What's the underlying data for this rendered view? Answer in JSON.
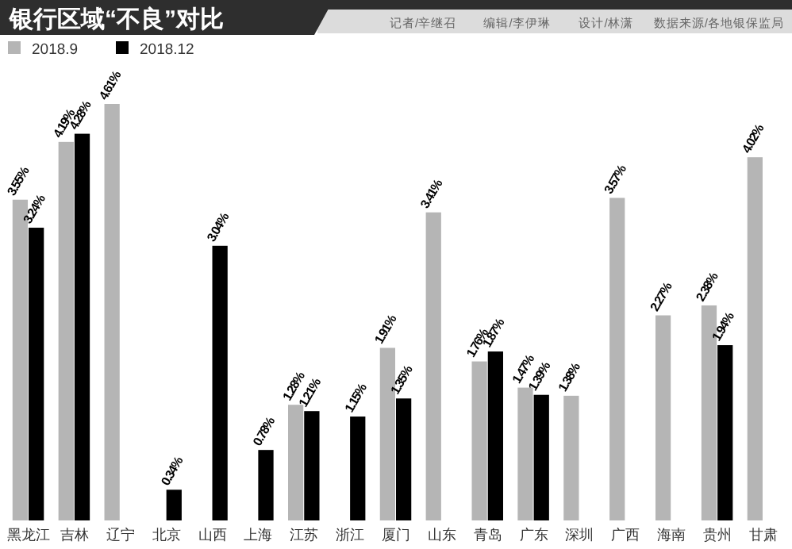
{
  "chart_data": {
    "type": "bar",
    "title": "银行区域“不良”对比",
    "annotations": [
      "记者/辛继召",
      "编辑/李伊琳",
      "设计/林潇",
      "数据来源/各地银保监局"
    ],
    "categories": [
      "黑龙江",
      "吉林",
      "辽宁",
      "北京",
      "山西",
      "上海",
      "江苏",
      "浙江",
      "厦门",
      "山东",
      "青岛",
      "广东",
      "深圳",
      "广西",
      "海南",
      "贵州",
      "甘肃"
    ],
    "series": [
      {
        "name": "2018.9",
        "color": "#b5b5b5",
        "values": [
          3.55,
          4.19,
          4.61,
          null,
          null,
          null,
          1.28,
          null,
          1.91,
          3.41,
          1.76,
          1.47,
          1.38,
          3.57,
          2.27,
          2.38,
          4.02
        ],
        "value_labels": [
          "3.55%",
          "4.19%",
          "4.61%",
          null,
          null,
          null,
          "1.28%",
          null,
          "1.91%",
          "3.41%",
          "1.76%",
          "1.47%",
          "1.38%",
          "3.57%",
          "2.27%",
          "2.38%",
          "4.02%"
        ]
      },
      {
        "name": "2018.12",
        "color": "#000000",
        "values": [
          3.24,
          4.28,
          null,
          0.34,
          3.04,
          0.78,
          1.21,
          1.15,
          1.35,
          null,
          1.87,
          1.39,
          null,
          null,
          null,
          1.94,
          null
        ],
        "value_labels": [
          "3.24%",
          "4.28%",
          null,
          "0.34%",
          "3.04%",
          "0.78%",
          "1.21%",
          "1.15%",
          "1.35%",
          null,
          "1.87%",
          "1.39%",
          null,
          null,
          null,
          "1.94%",
          null
        ]
      }
    ],
    "legend": "top left"
  }
}
